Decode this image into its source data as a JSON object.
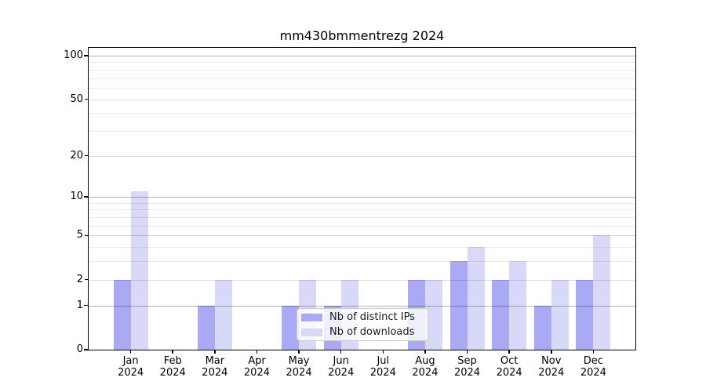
{
  "title": "mm430bmmentrezg 2024",
  "colors": {
    "bar_distinct_ips": "#a9a9f4",
    "bar_downloads": "#d8d8f8",
    "grid_decade": "#b3b3b3",
    "grid_major": "#d9d9d9",
    "grid_minor": "#efefef",
    "spine": "#000000",
    "legend_border": "#cccccc"
  },
  "chart_data": {
    "type": "bar",
    "title": "mm430bmmentrezg 2024",
    "x_categories": [
      "Jan",
      "Feb",
      "Mar",
      "Apr",
      "May",
      "Jun",
      "Jul",
      "Aug",
      "Sep",
      "Oct",
      "Nov",
      "Dec"
    ],
    "x_year": "2024",
    "categories": [
      "Jan 2024",
      "Feb 2024",
      "Mar 2024",
      "Apr 2024",
      "May 2024",
      "Jun 2024",
      "Jul 2024",
      "Aug 2024",
      "Sep 2024",
      "Oct 2024",
      "Nov 2024",
      "Dec 2024"
    ],
    "series": [
      {
        "name": "Nb of distinct IPs",
        "color": "#a9a9f4",
        "values": [
          2,
          0,
          1,
          0,
          1,
          1,
          0,
          2,
          3,
          2,
          1,
          2
        ]
      },
      {
        "name": "Nb of downloads",
        "color": "#d8d8f8",
        "values": [
          11,
          0,
          2,
          0,
          2,
          2,
          0,
          2,
          4,
          3,
          2,
          5
        ]
      }
    ],
    "y_axis": {
      "scale": "log10(1+value)",
      "ticks": [
        0,
        1,
        2,
        5,
        10,
        20,
        50,
        100
      ],
      "decade_ticks": [
        1,
        10,
        100
      ],
      "minor_ticks": [
        3,
        4,
        6,
        7,
        8,
        9,
        30,
        40,
        60,
        70,
        80,
        90
      ],
      "ylim": [
        0,
        113
      ]
    },
    "grid": true,
    "legend_position": "inside-lower-center"
  }
}
